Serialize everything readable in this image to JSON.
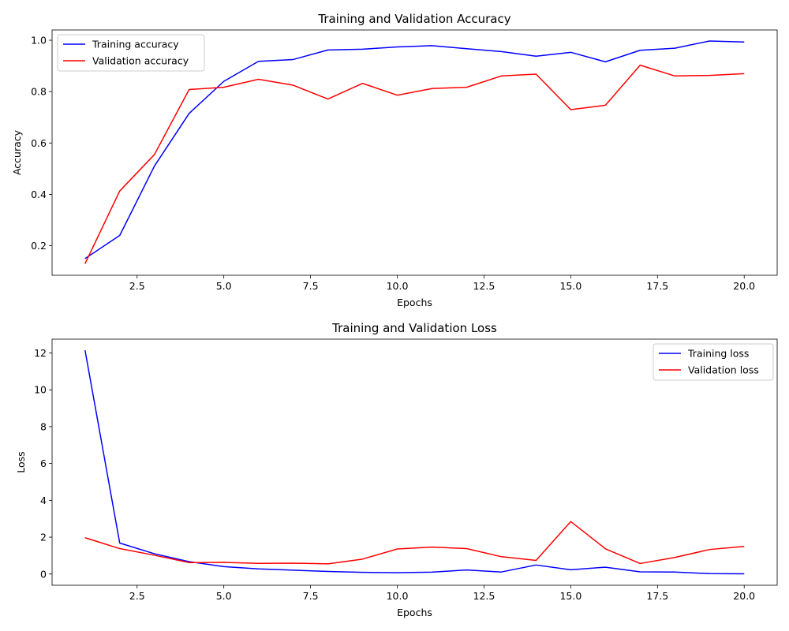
{
  "chart_data": [
    {
      "type": "line",
      "title": "Training and Validation Accuracy",
      "xlabel": "Epochs",
      "ylabel": "Accuracy",
      "xlim": [
        0.05,
        20.95
      ],
      "ylim": [
        0.085,
        1.04
      ],
      "xticks": [
        2.5,
        5.0,
        7.5,
        10.0,
        12.5,
        15.0,
        17.5,
        20.0
      ],
      "xtick_labels": [
        "2.5",
        "5.0",
        "7.5",
        "10.0",
        "12.5",
        "15.0",
        "17.5",
        "20.0"
      ],
      "yticks": [
        0.2,
        0.4,
        0.6,
        0.8,
        1.0
      ],
      "ytick_labels": [
        "0.2",
        "0.4",
        "0.6",
        "0.8",
        "1.0"
      ],
      "legend_position": "upper left",
      "grid": false,
      "x": [
        1,
        2,
        3,
        4,
        5,
        6,
        7,
        8,
        9,
        10,
        11,
        12,
        13,
        14,
        15,
        16,
        17,
        18,
        19,
        20
      ],
      "series": [
        {
          "name": "Training accuracy",
          "color": "#0000ff",
          "values": [
            0.15,
            0.24,
            0.51,
            0.715,
            0.84,
            0.918,
            0.925,
            0.962,
            0.965,
            0.974,
            0.979,
            0.967,
            0.956,
            0.938,
            0.953,
            0.916,
            0.961,
            0.969,
            0.997,
            0.993
          ]
        },
        {
          "name": "Validation accuracy",
          "color": "#ff0000",
          "values": [
            0.13,
            0.413,
            0.555,
            0.808,
            0.817,
            0.848,
            0.825,
            0.771,
            0.832,
            0.786,
            0.812,
            0.817,
            0.861,
            0.868,
            0.73,
            0.747,
            0.903,
            0.861,
            0.863,
            0.87
          ]
        }
      ]
    },
    {
      "type": "line",
      "title": "Training and Validation Loss",
      "xlabel": "Epochs",
      "ylabel": "Loss",
      "xlim": [
        0.05,
        20.95
      ],
      "ylim": [
        -0.61,
        12.75
      ],
      "xticks": [
        2.5,
        5.0,
        7.5,
        10.0,
        12.5,
        15.0,
        17.5,
        20.0
      ],
      "xtick_labels": [
        "2.5",
        "5.0",
        "7.5",
        "10.0",
        "12.5",
        "15.0",
        "17.5",
        "20.0"
      ],
      "yticks": [
        0,
        2,
        4,
        6,
        8,
        10,
        12
      ],
      "ytick_labels": [
        "0",
        "2",
        "4",
        "6",
        "8",
        "10",
        "12"
      ],
      "legend_position": "upper right",
      "grid": false,
      "x": [
        1,
        2,
        3,
        4,
        5,
        6,
        7,
        8,
        9,
        10,
        11,
        12,
        13,
        14,
        15,
        16,
        17,
        18,
        19,
        20
      ],
      "series": [
        {
          "name": "Training loss",
          "color": "#0000ff",
          "values": [
            12.15,
            1.68,
            1.1,
            0.67,
            0.4,
            0.28,
            0.21,
            0.14,
            0.09,
            0.07,
            0.1,
            0.22,
            0.11,
            0.49,
            0.23,
            0.37,
            0.12,
            0.11,
            0.02,
            0.01
          ]
        },
        {
          "name": "Validation loss",
          "color": "#ff0000",
          "values": [
            1.97,
            1.38,
            1.02,
            0.62,
            0.63,
            0.58,
            0.59,
            0.55,
            0.81,
            1.36,
            1.46,
            1.38,
            0.94,
            0.74,
            2.85,
            1.37,
            0.57,
            0.9,
            1.33,
            1.5
          ]
        }
      ]
    }
  ]
}
